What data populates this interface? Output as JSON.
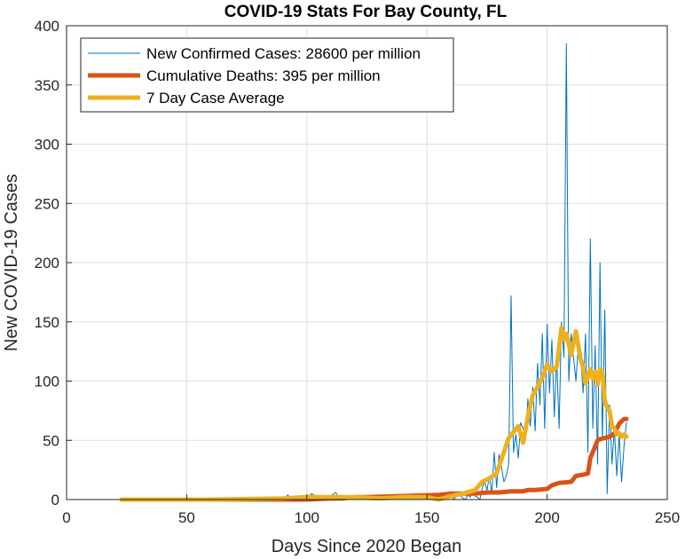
{
  "chart_data": {
    "type": "line",
    "title": "COVID-19 Stats For Bay County, FL",
    "xlabel": "Days Since 2020 Began",
    "ylabel": "New COVID-19 Cases",
    "xlim": [
      0,
      250
    ],
    "ylim": [
      0,
      400
    ],
    "xticks": [
      0,
      50,
      100,
      150,
      200,
      250
    ],
    "yticks": [
      0,
      50,
      100,
      150,
      200,
      250,
      300,
      350,
      400
    ],
    "grid": true,
    "legend_position": "top-left",
    "series": [
      {
        "name": "New Confirmed Cases: 28600 per million",
        "color": "#0072BD",
        "width": "thin",
        "x": [
          23,
          60,
          88,
          90,
          91,
          92,
          94,
          96,
          98,
          100,
          102,
          104,
          106,
          108,
          110,
          112,
          114,
          116,
          118,
          120,
          122,
          124,
          126,
          128,
          130,
          132,
          134,
          136,
          138,
          140,
          142,
          144,
          146,
          148,
          150,
          152,
          154,
          156,
          158,
          160,
          161,
          162,
          163,
          164,
          165,
          166,
          167,
          168,
          169,
          170,
          171,
          172,
          173,
          174,
          175,
          176,
          177,
          178,
          179,
          180,
          181,
          182,
          183,
          184,
          185,
          186,
          187,
          188,
          189,
          190,
          191,
          192,
          193,
          194,
          195,
          196,
          197,
          198,
          199,
          200,
          201,
          202,
          203,
          204,
          205,
          206,
          207,
          208,
          209,
          210,
          211,
          212,
          213,
          214,
          215,
          216,
          217,
          218,
          219,
          220,
          221,
          222,
          223,
          224,
          225,
          226,
          227,
          228,
          229,
          230,
          231,
          232,
          233
        ],
        "y": [
          0,
          0,
          0,
          2,
          0,
          4,
          0,
          1,
          3,
          0,
          5,
          2,
          0,
          1,
          3,
          6,
          0,
          2,
          1,
          0,
          3,
          1,
          2,
          0,
          1,
          3,
          0,
          2,
          1,
          0,
          4,
          1,
          2,
          0,
          3,
          5,
          0,
          2,
          1,
          6,
          0,
          2,
          5,
          3,
          1,
          0,
          4,
          2,
          6,
          3,
          2,
          0,
          10,
          15,
          8,
          20,
          5,
          40,
          10,
          38,
          28,
          15,
          20,
          30,
          172,
          40,
          55,
          35,
          65,
          60,
          50,
          85,
          62,
          95,
          58,
          115,
          80,
          140,
          60,
          148,
          90,
          135,
          70,
          120,
          60,
          150,
          120,
          385,
          100,
          140,
          120,
          100,
          130,
          120,
          90,
          140,
          40,
          220,
          60,
          130,
          30,
          200,
          50,
          160,
          5,
          80,
          30,
          60,
          20,
          55,
          15,
          45,
          65
        ]
      },
      {
        "name": "Cumulative Deaths: 395 per million",
        "color": "#D95319",
        "width": "thick",
        "x": [
          23,
          100,
          110,
          115,
          120,
          125,
          140,
          155,
          160,
          170,
          175,
          180,
          185,
          190,
          192,
          195,
          200,
          202,
          205,
          210,
          212,
          215,
          217,
          218,
          220,
          221,
          222,
          224,
          226,
          228,
          229,
          230,
          231,
          232,
          233
        ],
        "y": [
          0,
          0,
          1,
          1,
          2,
          2,
          3,
          4,
          5,
          5,
          6,
          6,
          7,
          7,
          8,
          8,
          9,
          12,
          14,
          15,
          20,
          21,
          22,
          35,
          45,
          50,
          51,
          52,
          53,
          56,
          60,
          64,
          66,
          68,
          68
        ]
      },
      {
        "name": "7 Day Case Average",
        "color": "#EDB120",
        "width": "thick",
        "x": [
          23,
          60,
          90,
          100,
          110,
          120,
          130,
          140,
          150,
          155,
          160,
          165,
          170,
          173,
          176,
          179,
          182,
          184,
          186,
          188,
          190,
          192,
          194,
          196,
          198,
          200,
          202,
          204,
          206,
          207,
          208,
          210,
          212,
          214,
          215,
          216,
          217,
          218,
          219,
          220,
          221,
          222,
          223,
          224,
          225,
          226,
          227,
          228,
          229,
          230,
          231,
          232,
          233
        ],
        "y": [
          0,
          0,
          1,
          2,
          2,
          2,
          1,
          2,
          2,
          0,
          3,
          5,
          8,
          15,
          18,
          22,
          40,
          52,
          57,
          62,
          48,
          70,
          88,
          95,
          103,
          114,
          108,
          112,
          145,
          135,
          140,
          122,
          142,
          118,
          112,
          98,
          103,
          110,
          102,
          108,
          97,
          110,
          108,
          83,
          78,
          75,
          62,
          60,
          55,
          56,
          53,
          55,
          53
        ]
      }
    ]
  }
}
